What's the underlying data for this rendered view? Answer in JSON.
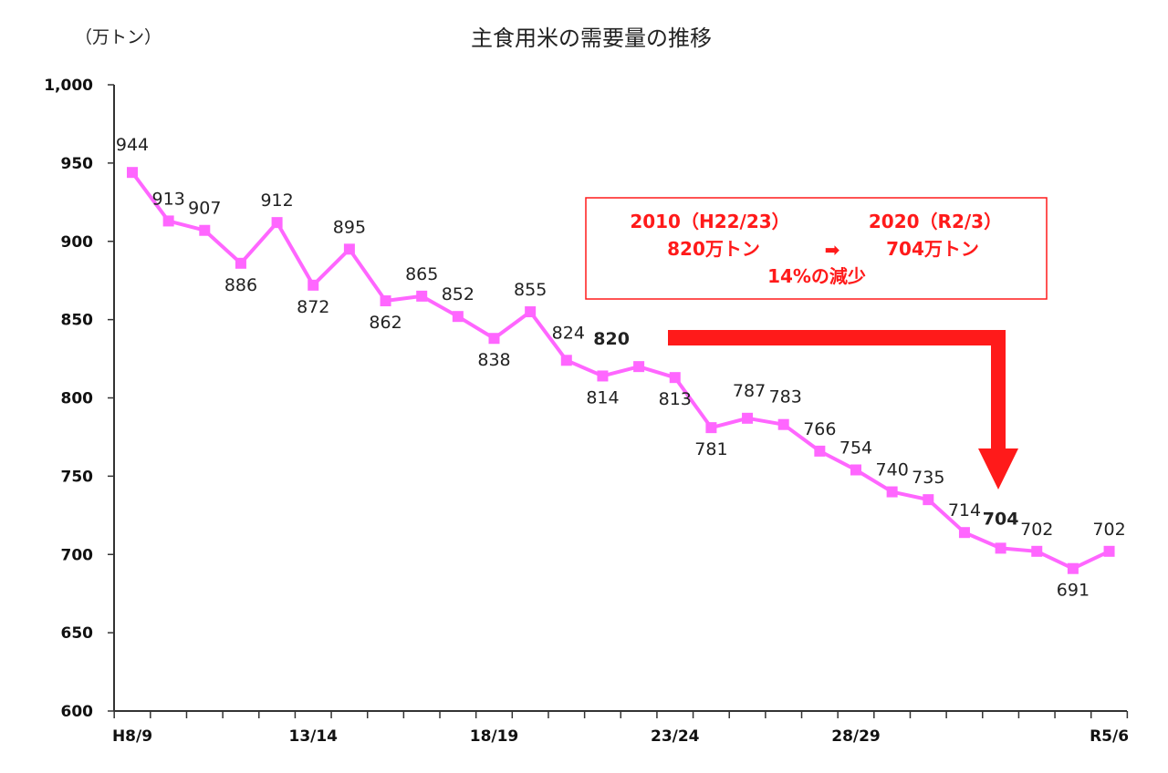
{
  "chart_data": {
    "type": "line",
    "title": "主食用米の需要量の推移",
    "unit_label": "（万トン）",
    "ylim": [
      600,
      1000
    ],
    "yticks": [
      "1,000",
      "950",
      "900",
      "850",
      "800",
      "750",
      "700",
      "650",
      "600"
    ],
    "ytick_values": [
      1000,
      950,
      900,
      850,
      800,
      750,
      700,
      650,
      600
    ],
    "x_tick_labels": [
      {
        "index": 0,
        "label": "H8/9"
      },
      {
        "index": 5,
        "label": "13/14"
      },
      {
        "index": 10,
        "label": "18/19"
      },
      {
        "index": 15,
        "label": "23/24"
      },
      {
        "index": 20,
        "label": "28/29"
      },
      {
        "index": 27,
        "label": "R5/6"
      }
    ],
    "series": [
      {
        "name": "主食用米の需要量",
        "color": "#ff66ff",
        "values": [
          944,
          913,
          907,
          886,
          912,
          872,
          895,
          862,
          865,
          852,
          838,
          855,
          824,
          814,
          820,
          813,
          781,
          787,
          783,
          766,
          754,
          740,
          735,
          714,
          704,
          702,
          691,
          702
        ],
        "labels": [
          "944",
          "913",
          "907",
          "886",
          "912",
          "872",
          "895",
          "862",
          "865",
          "852",
          "838",
          "855",
          "824",
          "814",
          "820",
          "813",
          "781",
          "787",
          "783",
          "766",
          "754",
          "740",
          "735",
          "714",
          "704",
          "702",
          "691",
          "702"
        ]
      }
    ],
    "annotations": {
      "box_line1_left": "2010（H22/23）",
      "box_line1_right": "2020（R2/3）",
      "box_line2_left": "820万トン",
      "box_line2_arrow": "➡",
      "box_line2_right": "704万トン",
      "box_line3": "14%の減少",
      "accent_color": "#ff1a1a"
    }
  }
}
